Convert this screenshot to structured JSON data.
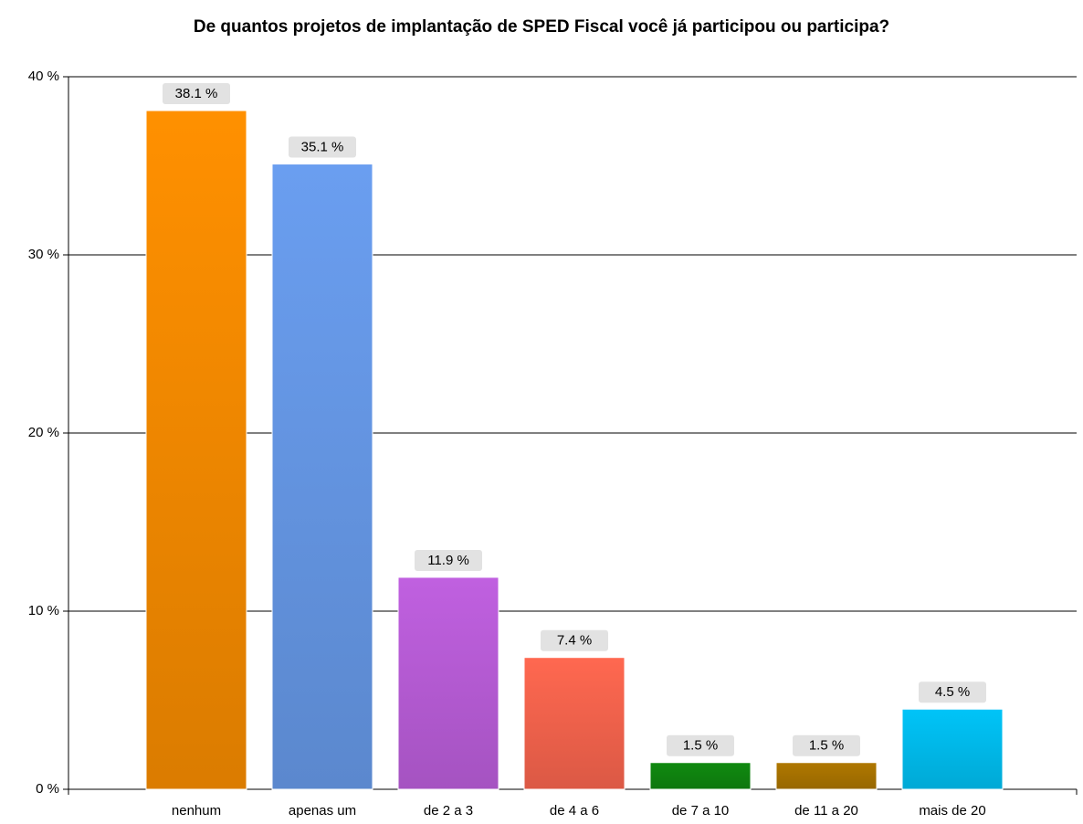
{
  "chart_data": {
    "type": "bar",
    "title": "De quantos projetos de implantação de  SPED Fiscal você já participou ou participa?",
    "categories": [
      "nenhum",
      "apenas um",
      "de 2 a 3",
      "de 4 a 6",
      "de 7 a 10",
      "de 11 a 20",
      "mais de 20"
    ],
    "values": [
      38.1,
      35.1,
      11.9,
      7.4,
      1.5,
      1.5,
      4.5
    ],
    "value_labels": [
      "38.1 %",
      "35.1 %",
      "11.9 %",
      "7.4 %",
      "1.5 %",
      "1.5 %",
      "4.5 %"
    ],
    "colors": [
      "#ff9000",
      "#6a9ef0",
      "#c060e0",
      "#ff6850",
      "#108a10",
      "#b07800",
      "#00c4f8"
    ],
    "ylim": [
      0,
      40
    ],
    "yticks": [
      {
        "value": 0,
        "label": "0 %"
      },
      {
        "value": 10,
        "label": "10 %"
      },
      {
        "value": 20,
        "label": "20 %"
      },
      {
        "value": 30,
        "label": "30 %"
      },
      {
        "value": 40,
        "label": "40 %"
      }
    ],
    "grid": true
  }
}
